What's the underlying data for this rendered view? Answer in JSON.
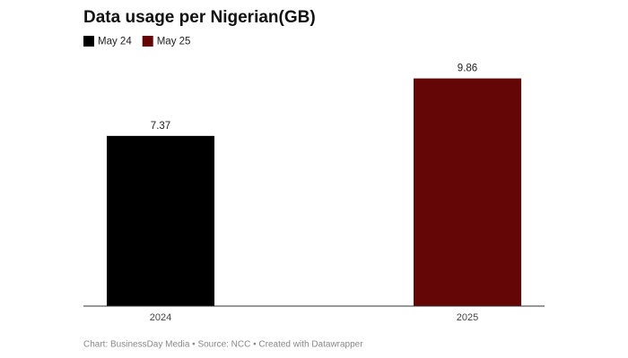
{
  "chart_data": {
    "type": "bar",
    "title": "Data usage per Nigerian(GB)",
    "categories": [
      "2024",
      "2025"
    ],
    "series": [
      {
        "name": "May 24",
        "color": "#000000",
        "values": [
          7.37,
          null
        ]
      },
      {
        "name": "May 25",
        "color": "#650606",
        "values": [
          null,
          9.86
        ]
      }
    ],
    "ylim": [
      0,
      10
    ],
    "source": "Chart: BusinessDay Media • Source: NCC • Created with Datawrapper"
  }
}
